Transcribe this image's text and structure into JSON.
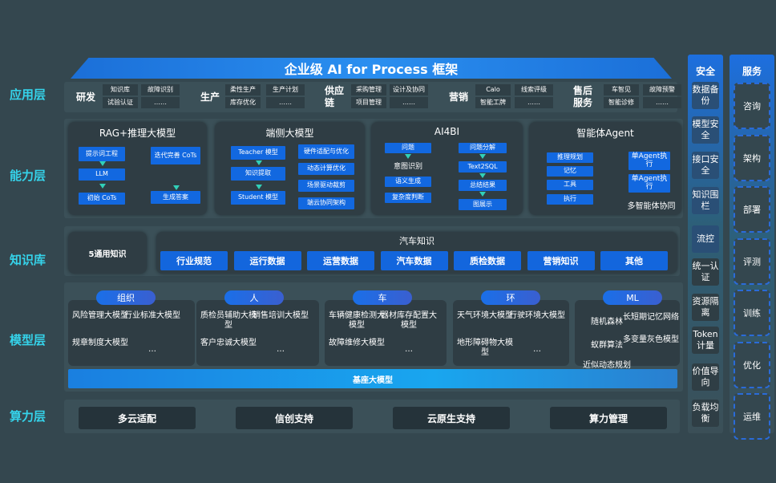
{
  "title": "企业级 AI for Process 框架",
  "layers": [
    "应用层",
    "能力层",
    "知识库",
    "模型层",
    "算力层"
  ],
  "app": [
    {
      "name": "研发",
      "cells": [
        "知识库",
        "故障识别",
        "试验认证",
        "……"
      ]
    },
    {
      "name": "生产",
      "cells": [
        "柔性生产",
        "生产计划",
        "库存优化",
        "……"
      ]
    },
    {
      "name": "供应链",
      "cells": [
        "采购管理",
        "设计及协同",
        "项目管理",
        "……"
      ]
    },
    {
      "name": "营销",
      "cells": [
        "Calo",
        "线索评级",
        "智能工牌",
        "……"
      ]
    },
    {
      "name": "售后服务",
      "cells": [
        "车智见",
        "故障预警",
        "智能诊修",
        "……"
      ]
    }
  ],
  "capability": {
    "rag": {
      "title": "RAG+推理大模型",
      "items": [
        "提示词工程",
        "LLM",
        "初始 CoTs",
        "迭代完善 CoTs",
        "生成答案"
      ]
    },
    "edge": {
      "title": "端侧大模型",
      "items": [
        "Teacher 模型",
        "知识提取",
        "Student 模型",
        "硬件适配与优化",
        "动态计算优化",
        "场景驱动裁剪",
        "端云协同架构"
      ]
    },
    "ai4bi": {
      "title": "AI4BI",
      "items": [
        "问题",
        "意图识别",
        "语义生成",
        "复杂度判断",
        "问题分解",
        "Text2SQL",
        "总结结果",
        "图展示"
      ]
    },
    "agent": {
      "title": "智能体Agent",
      "items": [
        "推理规划",
        "记忆",
        "工具",
        "执行",
        "单Agent执行",
        "单Agent执行"
      ],
      "footer": "多智能体协同"
    }
  },
  "knowledge": {
    "general": "5通用知识",
    "auto_title": "汽车知识",
    "items": [
      "行业规范",
      "运行数据",
      "运营数据",
      "汽车数据",
      "质检数据",
      "营销知识",
      "其他"
    ]
  },
  "models": [
    {
      "tag": "组织",
      "items": [
        "风险管理大模型",
        "行业标准大模型",
        "规章制度大模型",
        "…"
      ]
    },
    {
      "tag": "人",
      "items": [
        "质检员辅助大模型",
        "销售培训大模型",
        "客户忠诚大模型",
        "…"
      ]
    },
    {
      "tag": "车",
      "items": [
        "车辆健康检测大模型",
        "器材库存配置大模型",
        "故障维修大模型",
        "…"
      ]
    },
    {
      "tag": "环",
      "items": [
        "天气环境大模型",
        "行驶环境大模型",
        "地形障碍物大模型",
        "…"
      ]
    },
    {
      "tag": "ML",
      "items": [
        "随机森林",
        "长短期记忆网络",
        "蚁群算法",
        "多变量灰色模型",
        "近似动态规划",
        "…"
      ]
    }
  ],
  "base_model": "基座大模型",
  "compute": [
    "多云适配",
    "信创支持",
    "云原生支持",
    "算力管理"
  ],
  "security": {
    "title": "安全",
    "items": [
      "数据备份",
      "模型安全",
      "接口安全",
      "知识围栏",
      "流控",
      "统一认证",
      "资源隔离",
      "Token计量",
      "价值导向",
      "负载均衡"
    ]
  },
  "service": {
    "title": "服务",
    "items": [
      "咨询",
      "架构",
      "部署",
      "评测",
      "训练",
      "优化",
      "运维"
    ]
  }
}
